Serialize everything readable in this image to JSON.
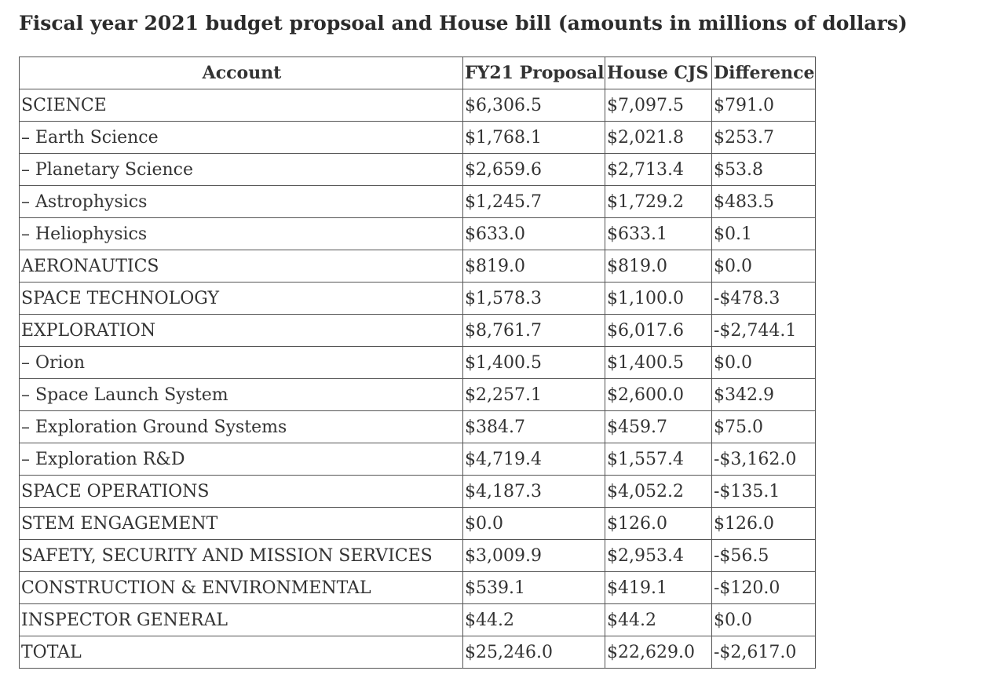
{
  "title": "Fiscal year 2021 budget propsoal and House bill (amounts in millions of dollars)",
  "table": {
    "headers": {
      "account": "Account",
      "proposal": "FY21 Proposal",
      "house": "House CJS",
      "difference": "Difference"
    },
    "rows": [
      {
        "account": "SCIENCE",
        "proposal": "$6,306.5",
        "house": "$7,097.5",
        "difference": "$791.0"
      },
      {
        "account": "– Earth Science",
        "proposal": "$1,768.1",
        "house": "$2,021.8",
        "difference": "$253.7"
      },
      {
        "account": "– Planetary Science",
        "proposal": "$2,659.6",
        "house": "$2,713.4",
        "difference": "$53.8"
      },
      {
        "account": "– Astrophysics",
        "proposal": "$1,245.7",
        "house": "$1,729.2",
        "difference": "$483.5"
      },
      {
        "account": "– Heliophysics",
        "proposal": "$633.0",
        "house": "$633.1",
        "difference": "$0.1"
      },
      {
        "account": "AERONAUTICS",
        "proposal": "$819.0",
        "house": "$819.0",
        "difference": "$0.0"
      },
      {
        "account": "SPACE TECHNOLOGY",
        "proposal": "$1,578.3",
        "house": "$1,100.0",
        "difference": "-$478.3"
      },
      {
        "account": "EXPLORATION",
        "proposal": "$8,761.7",
        "house": "$6,017.6",
        "difference": "-$2,744.1"
      },
      {
        "account": "– Orion",
        "proposal": "$1,400.5",
        "house": "$1,400.5",
        "difference": "$0.0"
      },
      {
        "account": "– Space Launch System",
        "proposal": "$2,257.1",
        "house": "$2,600.0",
        "difference": "$342.9"
      },
      {
        "account": "– Exploration Ground Systems",
        "proposal": "$384.7",
        "house": "$459.7",
        "difference": "$75.0"
      },
      {
        "account": "– Exploration R&D",
        "proposal": "$4,719.4",
        "house": "$1,557.4",
        "difference": "-$3,162.0"
      },
      {
        "account": "SPACE OPERATIONS",
        "proposal": "$4,187.3",
        "house": "$4,052.2",
        "difference": "-$135.1"
      },
      {
        "account": "STEM ENGAGEMENT",
        "proposal": "$0.0",
        "house": "$126.0",
        "difference": "$126.0"
      },
      {
        "account": "SAFETY, SECURITY AND MISSION SERVICES",
        "proposal": "$3,009.9",
        "house": "$2,953.4",
        "difference": "-$56.5"
      },
      {
        "account": "CONSTRUCTION & ENVIRONMENTAL",
        "proposal": "$539.1",
        "house": "$419.1",
        "difference": "-$120.0"
      },
      {
        "account": "INSPECTOR GENERAL",
        "proposal": "$44.2",
        "house": "$44.2",
        "difference": "$0.0"
      },
      {
        "account": "TOTAL",
        "proposal": "$25,246.0",
        "house": "$22,629.0",
        "difference": "-$2,617.0"
      }
    ]
  }
}
